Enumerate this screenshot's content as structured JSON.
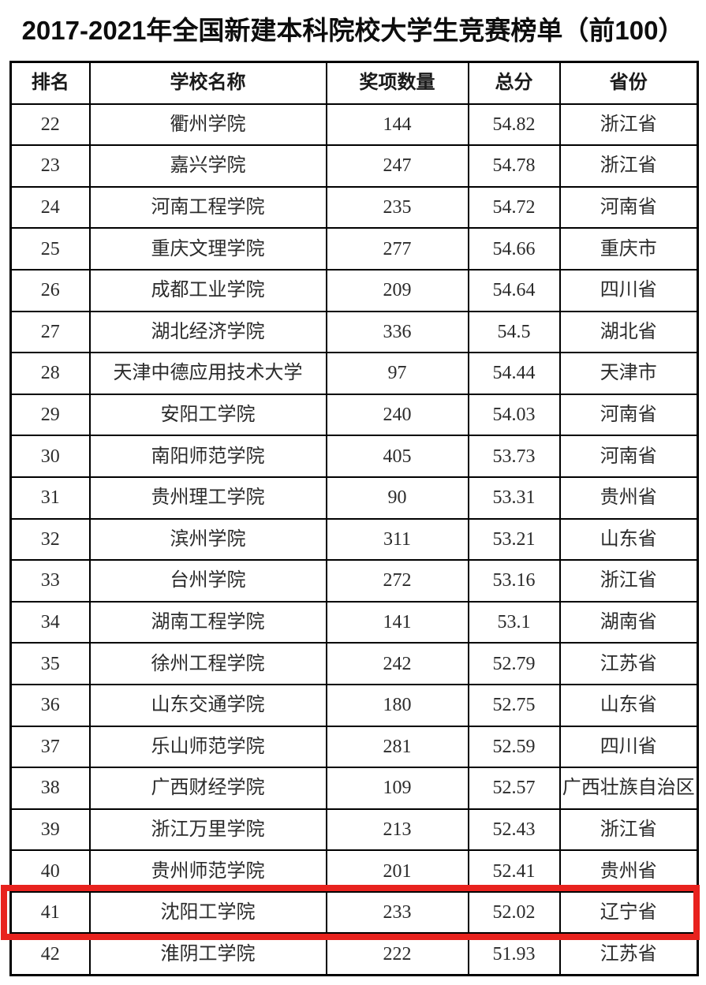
{
  "page": {
    "title": "2017-2021年全国新建本科院校大学生竞赛榜单（前100）"
  },
  "colors": {
    "highlight_red": "#e8221e",
    "table_border": "#000000",
    "text": "#2b2b2b"
  },
  "table": {
    "headers": [
      "排名",
      "学校名称",
      "奖项数量",
      "总分",
      "省份"
    ],
    "highlighted_rank": "41",
    "rows": [
      {
        "rank": "22",
        "school": "衢州学院",
        "awards": "144",
        "score": "54.82",
        "province": "浙江省"
      },
      {
        "rank": "23",
        "school": "嘉兴学院",
        "awards": "247",
        "score": "54.78",
        "province": "浙江省"
      },
      {
        "rank": "24",
        "school": "河南工程学院",
        "awards": "235",
        "score": "54.72",
        "province": "河南省"
      },
      {
        "rank": "25",
        "school": "重庆文理学院",
        "awards": "277",
        "score": "54.66",
        "province": "重庆市"
      },
      {
        "rank": "26",
        "school": "成都工业学院",
        "awards": "209",
        "score": "54.64",
        "province": "四川省"
      },
      {
        "rank": "27",
        "school": "湖北经济学院",
        "awards": "336",
        "score": "54.5",
        "province": "湖北省"
      },
      {
        "rank": "28",
        "school": "天津中德应用技术大学",
        "awards": "97",
        "score": "54.44",
        "province": "天津市"
      },
      {
        "rank": "29",
        "school": "安阳工学院",
        "awards": "240",
        "score": "54.03",
        "province": "河南省"
      },
      {
        "rank": "30",
        "school": "南阳师范学院",
        "awards": "405",
        "score": "53.73",
        "province": "河南省"
      },
      {
        "rank": "31",
        "school": "贵州理工学院",
        "awards": "90",
        "score": "53.31",
        "province": "贵州省"
      },
      {
        "rank": "32",
        "school": "滨州学院",
        "awards": "311",
        "score": "53.21",
        "province": "山东省"
      },
      {
        "rank": "33",
        "school": "台州学院",
        "awards": "272",
        "score": "53.16",
        "province": "浙江省"
      },
      {
        "rank": "34",
        "school": "湖南工程学院",
        "awards": "141",
        "score": "53.1",
        "province": "湖南省"
      },
      {
        "rank": "35",
        "school": "徐州工程学院",
        "awards": "242",
        "score": "52.79",
        "province": "江苏省"
      },
      {
        "rank": "36",
        "school": "山东交通学院",
        "awards": "180",
        "score": "52.75",
        "province": "山东省"
      },
      {
        "rank": "37",
        "school": "乐山师范学院",
        "awards": "281",
        "score": "52.59",
        "province": "四川省"
      },
      {
        "rank": "38",
        "school": "广西财经学院",
        "awards": "109",
        "score": "52.57",
        "province": "广西壮族自治区"
      },
      {
        "rank": "39",
        "school": "浙江万里学院",
        "awards": "213",
        "score": "52.43",
        "province": "浙江省"
      },
      {
        "rank": "40",
        "school": "贵州师范学院",
        "awards": "201",
        "score": "52.41",
        "province": "贵州省"
      },
      {
        "rank": "41",
        "school": "沈阳工学院",
        "awards": "233",
        "score": "52.02",
        "province": "辽宁省"
      },
      {
        "rank": "42",
        "school": "淮阴工学院",
        "awards": "222",
        "score": "51.93",
        "province": "江苏省"
      }
    ]
  }
}
